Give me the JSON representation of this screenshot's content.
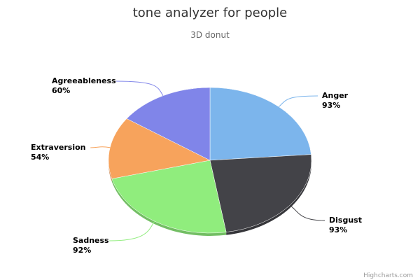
{
  "chart_data": {
    "type": "pie",
    "title": "tone analyzer for people",
    "subtitle": "3D donut",
    "credits": "Highcharts.com",
    "slices": [
      {
        "label": "Anger",
        "value": 93,
        "value_text": "93%",
        "color": "#7cb5ec"
      },
      {
        "label": "Disgust",
        "value": 93,
        "value_text": "93%",
        "color": "#434348"
      },
      {
        "label": "Sadness",
        "value": 92,
        "value_text": "92%",
        "color": "#90ed7d"
      },
      {
        "label": "Extraversion",
        "value": 54,
        "value_text": "54%",
        "color": "#f7a35c"
      },
      {
        "label": "Agreeableness",
        "value": 60,
        "value_text": "60%",
        "color": "#8085e9"
      }
    ]
  }
}
